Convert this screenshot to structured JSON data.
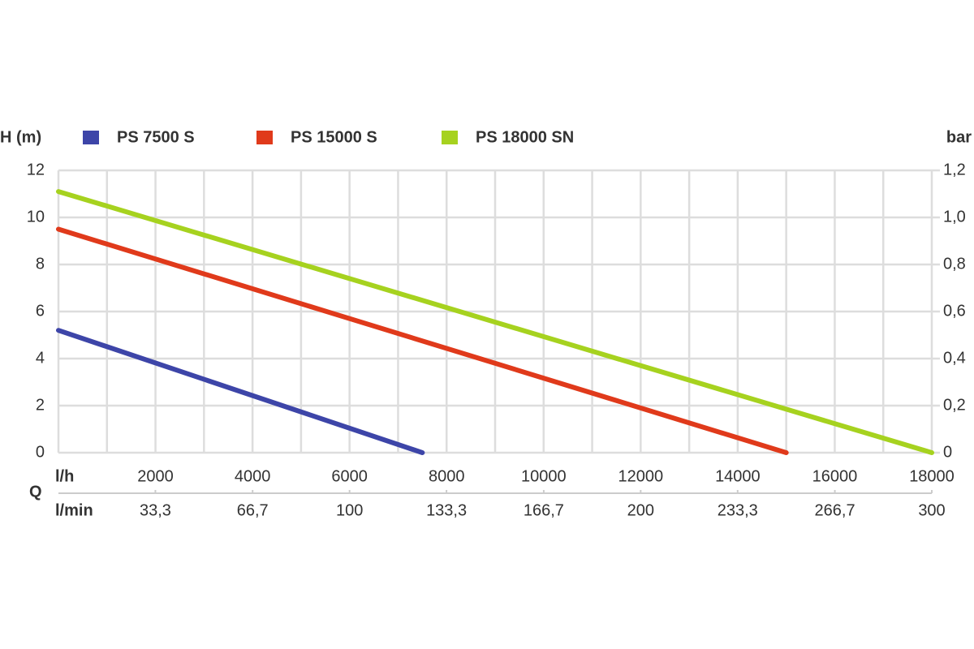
{
  "chart_data": {
    "type": "line",
    "ylabel": "H (m)",
    "y2label": "bar",
    "xrow_label": "l/h",
    "x2row_label": "l/min",
    "xaxis_label": "Q",
    "series": [
      {
        "name": "PS 7500 S",
        "color": "#3d45a8",
        "x": [
          0,
          7500
        ],
        "values": [
          5.2,
          0
        ]
      },
      {
        "name": "PS 15000 S",
        "color": "#e03a1b",
        "x": [
          0,
          15000
        ],
        "values": [
          9.5,
          0
        ]
      },
      {
        "name": "PS 18000 SN",
        "color": "#a6d21f",
        "x": [
          0,
          18000
        ],
        "values": [
          11.1,
          0
        ]
      }
    ],
    "xlim": [
      0,
      18000
    ],
    "xticks": [
      2000,
      4000,
      6000,
      8000,
      10000,
      12000,
      14000,
      16000,
      18000
    ],
    "x_grid_step": 1000,
    "x2lim": [
      0,
      300
    ],
    "x2ticks": [
      {
        "value": 33.3,
        "label": "33,3"
      },
      {
        "value": 66.7,
        "label": "66,7"
      },
      100,
      {
        "value": 133.3,
        "label": "133,3"
      },
      {
        "value": 166.7,
        "label": "166,7"
      },
      200,
      {
        "value": 233.3,
        "label": "233,3"
      },
      {
        "value": 266.7,
        "label": "266,7"
      },
      300
    ],
    "ylim": [
      0,
      12
    ],
    "yticks": [
      0,
      2,
      4,
      6,
      8,
      10,
      12
    ],
    "y2lim": [
      0,
      1.2
    ],
    "y2ticks": [
      {
        "value": 0,
        "label": "0"
      },
      {
        "value": 0.2,
        "label": "0,2"
      },
      {
        "value": 0.4,
        "label": "0,4"
      },
      {
        "value": 0.6,
        "label": "0,6"
      },
      {
        "value": 0.8,
        "label": "0,8"
      },
      {
        "value": 1.0,
        "label": "1,0"
      },
      {
        "value": 1.2,
        "label": "1,2"
      }
    ],
    "grid": true
  }
}
